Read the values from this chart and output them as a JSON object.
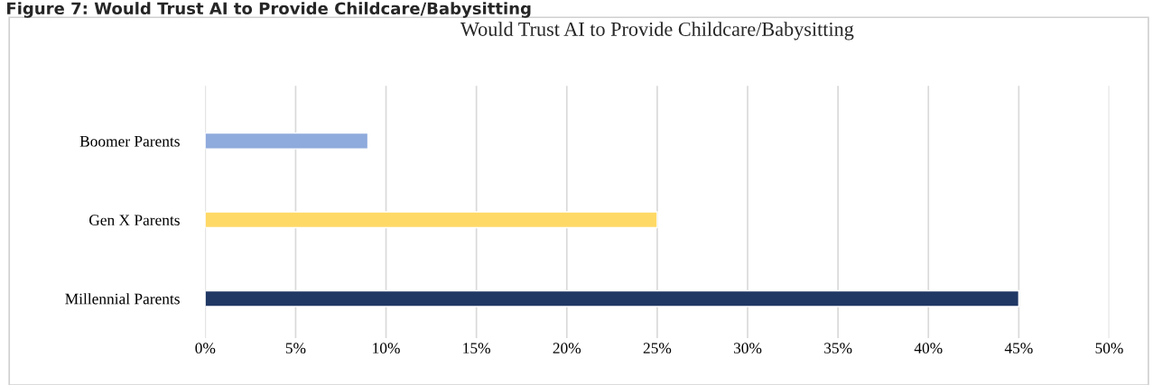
{
  "chart_data": {
    "type": "bar",
    "orientation": "horizontal",
    "title": "Would Trust AI to Provide Childcare/Babysitting",
    "annotations": [
      "Figure 7: Would Trust AI to Provide Childcare/Babysitting"
    ],
    "categories": [
      "Boomer Parents",
      "Gen X Parents",
      "Millennial Parents"
    ],
    "values": [
      9,
      25,
      45
    ],
    "colors": [
      "#8faadc",
      "#ffd966",
      "#203864"
    ],
    "xlim": [
      0,
      50
    ],
    "xticks": [
      {
        "value": 0,
        "label": "0%"
      },
      {
        "value": 5,
        "label": "5%"
      },
      {
        "value": 10,
        "label": "10%"
      },
      {
        "value": 15,
        "label": "15%"
      },
      {
        "value": 20,
        "label": "20%"
      },
      {
        "value": 25,
        "label": "25%"
      },
      {
        "value": 30,
        "label": "30%"
      },
      {
        "value": 35,
        "label": "35%"
      },
      {
        "value": 40,
        "label": "40%"
      },
      {
        "value": 45,
        "label": "45%"
      },
      {
        "value": 50,
        "label": "50%"
      }
    ],
    "grid": "x",
    "legend": false
  }
}
